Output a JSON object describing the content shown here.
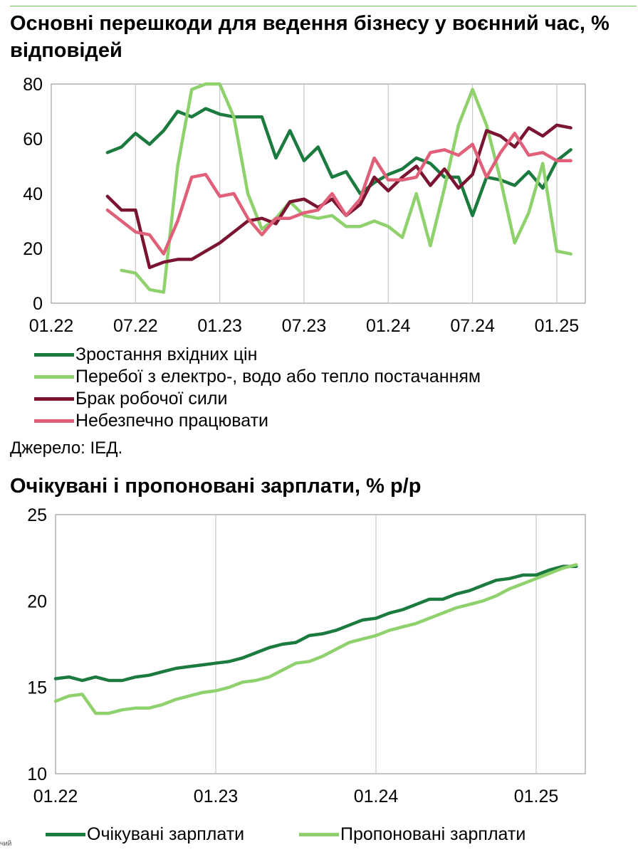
{
  "charts": {
    "chart1": {
      "title": "Основні перешкоди для ведення бізнесу у воєнний час, % відповідей",
      "source": "Джерело: ІЕД."
    },
    "chart2": {
      "title": "Очікувані і пропоновані зарплати, % р/р"
    }
  },
  "corner_text": "чий",
  "chart_data": [
    {
      "type": "line",
      "title": "Основні перешкоди для ведення бізнесу у воєнний час, % відповідей",
      "x_ticks": [
        "01.22",
        "07.22",
        "01.23",
        "07.23",
        "01.24",
        "07.24",
        "01.25"
      ],
      "y_ticks": [
        "0",
        "20",
        "40",
        "60",
        "80"
      ],
      "ylim": [
        0,
        80
      ],
      "grid": "vertical lines at each x tick",
      "legend": "bottom",
      "series": [
        {
          "name": "Зростання вхідних цін",
          "color": "#1b7a3e",
          "start": "05.22",
          "values": [
            55,
            57,
            62,
            58,
            63,
            70,
            68,
            71,
            69,
            68,
            68,
            68,
            53,
            63,
            52,
            57,
            46,
            48,
            40,
            44,
            47,
            49,
            53,
            51,
            46,
            46,
            32,
            46,
            45,
            43,
            48,
            42,
            52,
            56
          ]
        },
        {
          "name": "Перебої з електро-, водо або тепло постачанням",
          "color": "#8fd16c",
          "start": "05.22",
          "values": [
            null,
            12,
            11,
            5,
            4,
            50,
            78,
            80,
            80,
            68,
            40,
            27,
            31,
            37,
            32,
            31,
            32,
            28,
            28,
            30,
            28,
            24,
            40,
            21,
            42,
            65,
            78,
            65,
            45,
            22,
            33,
            51,
            19,
            18
          ]
        },
        {
          "name": "Брак робочої сили",
          "color": "#7a1430",
          "start": "05.22",
          "values": [
            39,
            34,
            34,
            13,
            15,
            16,
            16,
            19,
            22,
            26,
            30,
            31,
            29,
            37,
            38,
            35,
            38,
            32,
            36,
            46,
            41,
            46,
            50,
            43,
            49,
            42,
            47,
            63,
            61,
            57,
            64,
            61,
            65,
            64
          ]
        },
        {
          "name": "Небезпечно працювати",
          "color": "#e0607a",
          "start": "05.22",
          "values": [
            34,
            30,
            26,
            25,
            18,
            30,
            46,
            47,
            39,
            40,
            31,
            25,
            31,
            31,
            33,
            34,
            40,
            32,
            38,
            53,
            45,
            45,
            46,
            55,
            56,
            54,
            58,
            46,
            55,
            62,
            54,
            55,
            52,
            52
          ]
        }
      ]
    },
    {
      "type": "line",
      "title": "Очікувані і пропоновані зарплати, % р/р",
      "x_ticks": [
        "01.22",
        "01.23",
        "01.24",
        "01.25"
      ],
      "y_ticks": [
        "10",
        "15",
        "20",
        "25"
      ],
      "ylim": [
        10,
        25
      ],
      "grid": "vertical lines at each x tick",
      "legend": "bottom",
      "series": [
        {
          "name": "Очікувані зарплати",
          "color": "#1b7a3e",
          "start": "01.22",
          "values": [
            15.5,
            15.6,
            15.4,
            15.6,
            15.4,
            15.4,
            15.6,
            15.7,
            15.9,
            16.1,
            16.2,
            16.3,
            16.4,
            16.5,
            16.7,
            17.0,
            17.3,
            17.5,
            17.6,
            18.0,
            18.1,
            18.3,
            18.6,
            18.9,
            19.0,
            19.3,
            19.5,
            19.8,
            20.1,
            20.1,
            20.4,
            20.6,
            20.9,
            21.2,
            21.3,
            21.5,
            21.5,
            21.8,
            22.0,
            22.0
          ]
        },
        {
          "name": "Пропоновані зарплати",
          "color": "#8fd16c",
          "start": "01.22",
          "values": [
            14.2,
            14.5,
            14.6,
            13.5,
            13.5,
            13.7,
            13.8,
            13.8,
            14.0,
            14.3,
            14.5,
            14.7,
            14.8,
            15.0,
            15.3,
            15.4,
            15.6,
            16.0,
            16.4,
            16.5,
            16.8,
            17.2,
            17.6,
            17.8,
            18.0,
            18.3,
            18.5,
            18.7,
            19.0,
            19.3,
            19.6,
            19.8,
            20.0,
            20.3,
            20.7,
            21.0,
            21.3,
            21.6,
            21.9,
            22.1
          ]
        }
      ]
    }
  ]
}
